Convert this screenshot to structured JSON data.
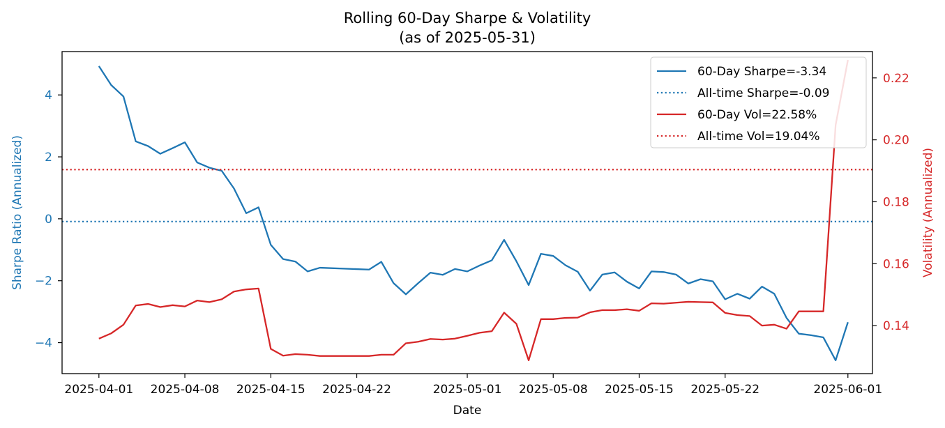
{
  "chart_data": {
    "type": "line",
    "title": "Rolling 60-Day Sharpe & Volatility",
    "subtitle": "(as of 2025-05-31)",
    "xlabel": "Date",
    "ylabel_left": "Sharpe Ratio (Annualized)",
    "ylabel_right": "Volatility (Annualized)",
    "x_range": [
      "2025-03-29",
      "2025-06-03"
    ],
    "ylim_left": [
      -5.0,
      5.4
    ],
    "ylim_right": [
      0.1245,
      0.2285
    ],
    "x_ticks": [
      "2025-04-01",
      "2025-04-08",
      "2025-04-15",
      "2025-04-22",
      "2025-05-01",
      "2025-05-08",
      "2025-05-15",
      "2025-05-22",
      "2025-06-01"
    ],
    "y_ticks_left": [
      "−4",
      "−2",
      "0",
      "2",
      "4"
    ],
    "y_ticks_left_values": [
      -4,
      -2,
      0,
      2,
      4
    ],
    "y_ticks_right": [
      "0.14",
      "0.16",
      "0.18",
      "0.20",
      "0.22"
    ],
    "y_ticks_right_values": [
      0.14,
      0.16,
      0.18,
      0.2,
      0.22
    ],
    "grid": false,
    "legend_position": "top-right",
    "colors": {
      "sharpe": "#1f77b4",
      "vol": "#d62728"
    },
    "series": [
      {
        "name": "60-Day Sharpe=-3.34",
        "axis": "left",
        "style": "solid",
        "color": "#1f77b4",
        "points": [
          [
            "2025-04-01",
            4.93
          ],
          [
            "2025-04-02",
            4.32
          ],
          [
            "2025-04-03",
            3.95
          ],
          [
            "2025-04-04",
            2.5
          ],
          [
            "2025-04-05",
            2.35
          ],
          [
            "2025-04-06",
            2.1
          ],
          [
            "2025-04-07",
            2.28
          ],
          [
            "2025-04-08",
            2.47
          ],
          [
            "2025-04-09",
            1.82
          ],
          [
            "2025-04-10",
            1.65
          ],
          [
            "2025-04-11",
            1.55
          ],
          [
            "2025-04-12",
            0.98
          ],
          [
            "2025-04-13",
            0.18
          ],
          [
            "2025-04-14",
            0.37
          ],
          [
            "2025-04-15",
            -0.84
          ],
          [
            "2025-04-16",
            -1.3
          ],
          [
            "2025-04-17",
            -1.38
          ],
          [
            "2025-04-18",
            -1.7
          ],
          [
            "2025-04-19",
            -1.58
          ],
          [
            "2025-04-23",
            -1.64
          ],
          [
            "2025-04-24",
            -1.39
          ],
          [
            "2025-04-25",
            -2.08
          ],
          [
            "2025-04-26",
            -2.44
          ],
          [
            "2025-04-27",
            -2.08
          ],
          [
            "2025-04-28",
            -1.74
          ],
          [
            "2025-04-29",
            -1.81
          ],
          [
            "2025-04-30",
            -1.62
          ],
          [
            "2025-05-01",
            -1.7
          ],
          [
            "2025-05-02",
            -1.51
          ],
          [
            "2025-05-03",
            -1.34
          ],
          [
            "2025-05-04",
            -0.68
          ],
          [
            "2025-05-05",
            -1.37
          ],
          [
            "2025-05-06",
            -2.14
          ],
          [
            "2025-05-07",
            -1.13
          ],
          [
            "2025-05-08",
            -1.2
          ],
          [
            "2025-05-09",
            -1.5
          ],
          [
            "2025-05-10",
            -1.71
          ],
          [
            "2025-05-11",
            -2.32
          ],
          [
            "2025-05-12",
            -1.8
          ],
          [
            "2025-05-13",
            -1.73
          ],
          [
            "2025-05-14",
            -2.03
          ],
          [
            "2025-05-15",
            -2.25
          ],
          [
            "2025-05-16",
            -1.7
          ],
          [
            "2025-05-17",
            -1.72
          ],
          [
            "2025-05-18",
            -1.8
          ],
          [
            "2025-05-19",
            -2.09
          ],
          [
            "2025-05-20",
            -1.95
          ],
          [
            "2025-05-21",
            -2.02
          ],
          [
            "2025-05-22",
            -2.6
          ],
          [
            "2025-05-23",
            -2.42
          ],
          [
            "2025-05-24",
            -2.58
          ],
          [
            "2025-05-25",
            -2.19
          ],
          [
            "2025-05-26",
            -2.42
          ],
          [
            "2025-05-27",
            -3.2
          ],
          [
            "2025-05-28",
            -3.71
          ],
          [
            "2025-05-29",
            -3.76
          ],
          [
            "2025-05-30",
            -3.83
          ],
          [
            "2025-05-31",
            -4.57
          ],
          [
            "2025-06-01",
            -3.34
          ]
        ]
      },
      {
        "name": "All-time Sharpe=-0.09",
        "axis": "left",
        "style": "dotted",
        "color": "#1f77b4",
        "constant": -0.09
      },
      {
        "name": "60-Day Vol=22.58%",
        "axis": "right",
        "style": "solid",
        "color": "#d62728",
        "points": [
          [
            "2025-04-01",
            0.1358
          ],
          [
            "2025-04-02",
            0.1375
          ],
          [
            "2025-04-03",
            0.1403
          ],
          [
            "2025-04-04",
            0.1465
          ],
          [
            "2025-04-05",
            0.147
          ],
          [
            "2025-04-06",
            0.146
          ],
          [
            "2025-04-07",
            0.1466
          ],
          [
            "2025-04-08",
            0.1462
          ],
          [
            "2025-04-09",
            0.1481
          ],
          [
            "2025-04-10",
            0.1476
          ],
          [
            "2025-04-11",
            0.1485
          ],
          [
            "2025-04-12",
            0.151
          ],
          [
            "2025-04-13",
            0.1517
          ],
          [
            "2025-04-14",
            0.152
          ],
          [
            "2025-04-15",
            0.1325
          ],
          [
            "2025-04-16",
            0.1303
          ],
          [
            "2025-04-17",
            0.1308
          ],
          [
            "2025-04-18",
            0.1306
          ],
          [
            "2025-04-19",
            0.1302
          ],
          [
            "2025-04-23",
            0.1302
          ],
          [
            "2025-04-24",
            0.1306
          ],
          [
            "2025-04-25",
            0.1306
          ],
          [
            "2025-04-26",
            0.1343
          ],
          [
            "2025-04-27",
            0.1348
          ],
          [
            "2025-04-28",
            0.1357
          ],
          [
            "2025-04-29",
            0.1355
          ],
          [
            "2025-04-30",
            0.1358
          ],
          [
            "2025-05-01",
            0.1367
          ],
          [
            "2025-05-02",
            0.1377
          ],
          [
            "2025-05-03",
            0.1382
          ],
          [
            "2025-05-04",
            0.1442
          ],
          [
            "2025-05-05",
            0.1406
          ],
          [
            "2025-05-06",
            0.1288
          ],
          [
            "2025-05-07",
            0.1421
          ],
          [
            "2025-05-08",
            0.1421
          ],
          [
            "2025-05-09",
            0.1425
          ],
          [
            "2025-05-10",
            0.1426
          ],
          [
            "2025-05-11",
            0.1443
          ],
          [
            "2025-05-12",
            0.145
          ],
          [
            "2025-05-13",
            0.145
          ],
          [
            "2025-05-14",
            0.1453
          ],
          [
            "2025-05-15",
            0.1448
          ],
          [
            "2025-05-16",
            0.1472
          ],
          [
            "2025-05-17",
            0.1471
          ],
          [
            "2025-05-18",
            0.1474
          ],
          [
            "2025-05-19",
            0.1477
          ],
          [
            "2025-05-20",
            0.1476
          ],
          [
            "2025-05-21",
            0.1475
          ],
          [
            "2025-05-22",
            0.1441
          ],
          [
            "2025-05-23",
            0.1434
          ],
          [
            "2025-05-24",
            0.1431
          ],
          [
            "2025-05-25",
            0.14
          ],
          [
            "2025-05-26",
            0.1403
          ],
          [
            "2025-05-27",
            0.139
          ],
          [
            "2025-05-28",
            0.1446
          ],
          [
            "2025-05-29",
            0.1446
          ],
          [
            "2025-05-30",
            0.1446
          ],
          [
            "2025-05-31",
            0.2048
          ],
          [
            "2025-06-01",
            0.2258
          ]
        ]
      },
      {
        "name": "All-time Vol=19.04%",
        "axis": "right",
        "style": "dotted",
        "color": "#d62728",
        "constant": 0.1904
      }
    ]
  }
}
